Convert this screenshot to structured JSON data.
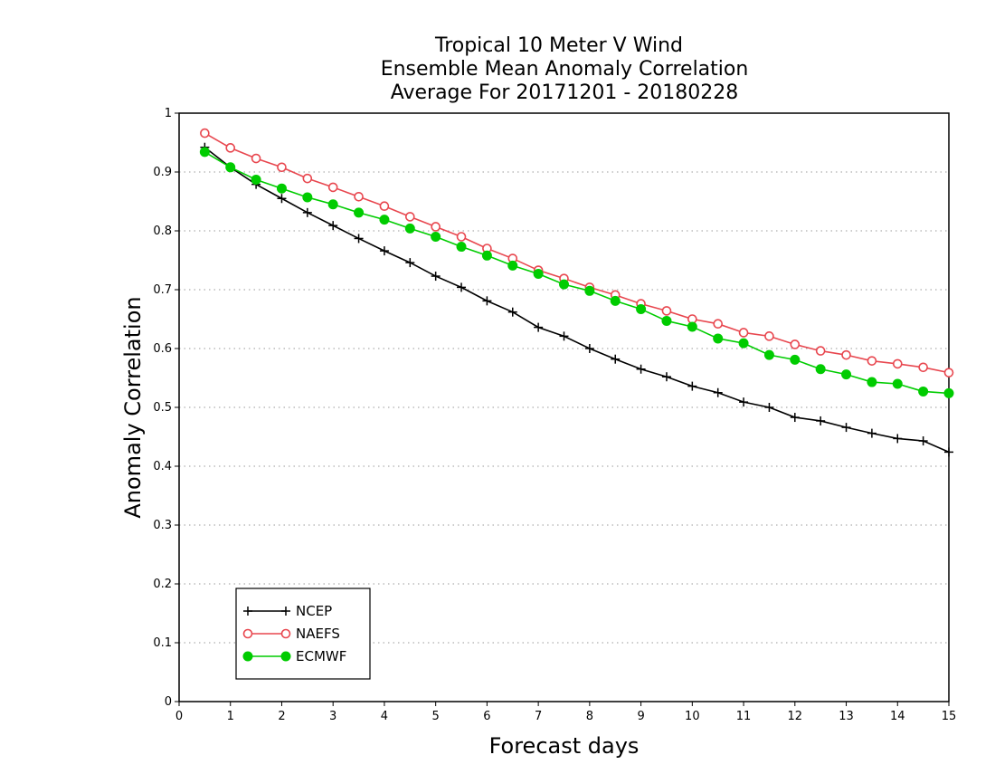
{
  "chart_data": {
    "type": "line",
    "title": [
      "Tropical 10 Meter V Wind",
      "Ensemble Mean Anomaly Correlation",
      "Average For 20171201 - 20180228"
    ],
    "xlabel": "Forecast days",
    "ylabel": "Anomaly Correlation",
    "xlim": [
      0,
      15
    ],
    "ylim": [
      0,
      1
    ],
    "xticks": [
      0,
      1,
      2,
      3,
      4,
      5,
      6,
      7,
      8,
      9,
      10,
      11,
      12,
      13,
      14,
      15
    ],
    "xtick_labels": [
      "0",
      "1",
      "2",
      "3",
      "4",
      "5",
      "6",
      "7",
      "8",
      "9",
      "10",
      "11",
      "12",
      "13",
      "14",
      "15"
    ],
    "yticks": [
      0,
      0.1,
      0.2,
      0.3,
      0.4,
      0.5,
      0.6,
      0.7,
      0.8,
      0.9,
      1
    ],
    "ytick_labels": [
      "0",
      "0.1",
      "0.2",
      "0.3",
      "0.4",
      "0.5",
      "0.6",
      "0.7",
      "0.8",
      "0.9",
      "1"
    ],
    "grid": "horizontal dotted",
    "legend_position": "bottom-left",
    "x": [
      0.5,
      1,
      1.5,
      2,
      2.5,
      3,
      3.5,
      4,
      4.5,
      5,
      5.5,
      6,
      6.5,
      7,
      7.5,
      8,
      8.5,
      9,
      9.5,
      10,
      10.5,
      11,
      11.5,
      12,
      12.5,
      13,
      13.5,
      14,
      14.5,
      15
    ],
    "series": [
      {
        "name": "NCEP",
        "color": "#000000",
        "marker": "plus",
        "values": [
          0.942,
          0.908,
          0.879,
          0.855,
          0.831,
          0.809,
          0.787,
          0.766,
          0.746,
          0.723,
          0.704,
          0.681,
          0.662,
          0.636,
          0.621,
          0.6,
          0.582,
          0.565,
          0.552,
          0.536,
          0.525,
          0.509,
          0.5,
          0.483,
          0.477,
          0.466,
          0.456,
          0.447,
          0.443,
          0.424
        ]
      },
      {
        "name": "NAEFS",
        "color": "#e8474f",
        "marker": "open-circle",
        "values": [
          0.966,
          0.941,
          0.923,
          0.908,
          0.889,
          0.874,
          0.858,
          0.842,
          0.824,
          0.807,
          0.79,
          0.77,
          0.753,
          0.733,
          0.719,
          0.704,
          0.691,
          0.676,
          0.664,
          0.65,
          0.642,
          0.627,
          0.621,
          0.607,
          0.596,
          0.589,
          0.579,
          0.574,
          0.568,
          0.559
        ]
      },
      {
        "name": "ECMWF",
        "color": "#00cc00",
        "marker": "filled-circle",
        "values": [
          0.934,
          0.908,
          0.887,
          0.872,
          0.857,
          0.845,
          0.831,
          0.819,
          0.804,
          0.79,
          0.773,
          0.758,
          0.741,
          0.727,
          0.709,
          0.698,
          0.681,
          0.667,
          0.647,
          0.637,
          0.617,
          0.609,
          0.589,
          0.581,
          0.565,
          0.556,
          0.543,
          0.54,
          0.527,
          0.524
        ]
      }
    ]
  }
}
